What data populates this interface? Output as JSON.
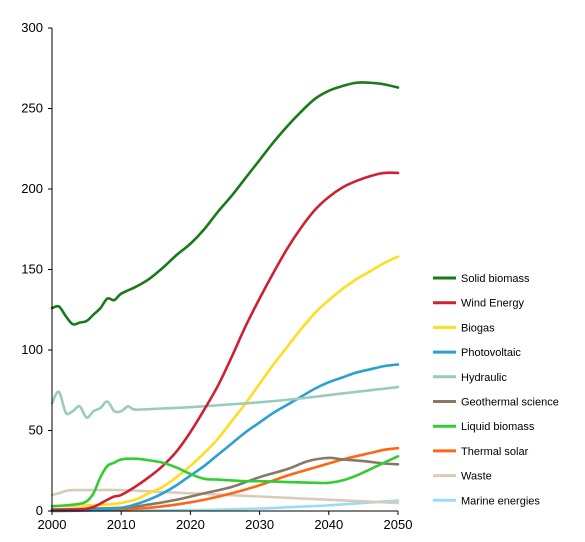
{
  "chart_data": {
    "type": "line",
    "title": "",
    "xlabel": "",
    "ylabel": "",
    "xlim": [
      2000,
      2050
    ],
    "ylim": [
      0,
      300
    ],
    "x_ticks": [
      "2000",
      "2010",
      "2020",
      "2030",
      "2040",
      "2050"
    ],
    "y_ticks": [
      "0",
      "50",
      "100",
      "150",
      "200",
      "250",
      "300"
    ],
    "grid": false,
    "legend_position": "right",
    "series": [
      {
        "name": "Solid biomass",
        "color": "#1a7a1a",
        "points": [
          [
            2000,
            126
          ],
          [
            2001,
            127
          ],
          [
            2002,
            121
          ],
          [
            2003,
            116
          ],
          [
            2004,
            117
          ],
          [
            2005,
            118
          ],
          [
            2006,
            122
          ],
          [
            2007,
            126
          ],
          [
            2008,
            132
          ],
          [
            2009,
            131
          ],
          [
            2010,
            135
          ],
          [
            2012,
            139
          ],
          [
            2014,
            144
          ],
          [
            2016,
            151
          ],
          [
            2018,
            159
          ],
          [
            2020,
            166
          ],
          [
            2022,
            175
          ],
          [
            2024,
            186
          ],
          [
            2026,
            196
          ],
          [
            2028,
            207
          ],
          [
            2030,
            218
          ],
          [
            2032,
            229
          ],
          [
            2034,
            239
          ],
          [
            2036,
            248
          ],
          [
            2038,
            256
          ],
          [
            2040,
            261
          ],
          [
            2042,
            264
          ],
          [
            2044,
            266
          ],
          [
            2046,
            266
          ],
          [
            2048,
            265
          ],
          [
            2050,
            263
          ]
        ]
      },
      {
        "name": "Wind Energy",
        "color": "#cc2233",
        "points": [
          [
            2000,
            0.5
          ],
          [
            2004,
            1
          ],
          [
            2006,
            2.5
          ],
          [
            2008,
            7
          ],
          [
            2009,
            9
          ],
          [
            2010,
            10
          ],
          [
            2012,
            15
          ],
          [
            2014,
            21
          ],
          [
            2016,
            28
          ],
          [
            2018,
            37
          ],
          [
            2020,
            49
          ],
          [
            2022,
            63
          ],
          [
            2024,
            78
          ],
          [
            2026,
            96
          ],
          [
            2028,
            115
          ],
          [
            2030,
            132
          ],
          [
            2032,
            148
          ],
          [
            2034,
            163
          ],
          [
            2036,
            176
          ],
          [
            2038,
            187
          ],
          [
            2040,
            195
          ],
          [
            2042,
            201
          ],
          [
            2044,
            205
          ],
          [
            2046,
            208
          ],
          [
            2048,
            210
          ],
          [
            2050,
            210
          ]
        ]
      },
      {
        "name": "Biogas",
        "color": "#ffdd22",
        "points": [
          [
            2000,
            3
          ],
          [
            2005,
            3.5
          ],
          [
            2008,
            4
          ],
          [
            2010,
            5
          ],
          [
            2012,
            7
          ],
          [
            2014,
            11
          ],
          [
            2016,
            15
          ],
          [
            2018,
            21
          ],
          [
            2020,
            28
          ],
          [
            2022,
            36
          ],
          [
            2024,
            45
          ],
          [
            2026,
            56
          ],
          [
            2028,
            67
          ],
          [
            2030,
            79
          ],
          [
            2032,
            91
          ],
          [
            2034,
            102
          ],
          [
            2036,
            113
          ],
          [
            2038,
            123
          ],
          [
            2040,
            131
          ],
          [
            2042,
            138
          ],
          [
            2044,
            144
          ],
          [
            2046,
            149
          ],
          [
            2048,
            154
          ],
          [
            2050,
            158
          ]
        ]
      },
      {
        "name": "Photovoltaic",
        "color": "#2aa0d0",
        "points": [
          [
            2000,
            0
          ],
          [
            2006,
            0.5
          ],
          [
            2010,
            2
          ],
          [
            2012,
            4
          ],
          [
            2014,
            7
          ],
          [
            2016,
            11
          ],
          [
            2018,
            16
          ],
          [
            2020,
            22
          ],
          [
            2022,
            28
          ],
          [
            2024,
            35
          ],
          [
            2026,
            42
          ],
          [
            2028,
            49
          ],
          [
            2030,
            55
          ],
          [
            2032,
            61
          ],
          [
            2034,
            66
          ],
          [
            2036,
            71
          ],
          [
            2038,
            76
          ],
          [
            2040,
            80
          ],
          [
            2042,
            83
          ],
          [
            2044,
            86
          ],
          [
            2046,
            88
          ],
          [
            2048,
            90
          ],
          [
            2050,
            91
          ]
        ]
      },
      {
        "name": "Hydraulic",
        "color": "#99ccbb",
        "points": [
          [
            2000,
            67
          ],
          [
            2001,
            74
          ],
          [
            2002,
            61
          ],
          [
            2003,
            62
          ],
          [
            2004,
            65
          ],
          [
            2005,
            58
          ],
          [
            2006,
            62
          ],
          [
            2007,
            64
          ],
          [
            2008,
            68
          ],
          [
            2009,
            62
          ],
          [
            2010,
            62
          ],
          [
            2011,
            65
          ],
          [
            2012,
            63
          ],
          [
            2015,
            63.5
          ],
          [
            2020,
            64.5
          ],
          [
            2025,
            66
          ],
          [
            2030,
            67.5
          ],
          [
            2035,
            69.5
          ],
          [
            2040,
            72
          ],
          [
            2045,
            74.5
          ],
          [
            2050,
            77
          ]
        ]
      },
      {
        "name": "Geothermal science",
        "color": "#8a7766",
        "points": [
          [
            2000,
            1
          ],
          [
            2010,
            2
          ],
          [
            2014,
            4
          ],
          [
            2018,
            7
          ],
          [
            2022,
            11
          ],
          [
            2026,
            15
          ],
          [
            2030,
            21
          ],
          [
            2034,
            26
          ],
          [
            2037,
            31
          ],
          [
            2040,
            33
          ],
          [
            2042,
            32
          ],
          [
            2045,
            31
          ],
          [
            2048,
            29.5
          ],
          [
            2050,
            29
          ]
        ]
      },
      {
        "name": "Liquid biomass",
        "color": "#33cc33",
        "points": [
          [
            2000,
            3
          ],
          [
            2002,
            3.5
          ],
          [
            2004,
            4.5
          ],
          [
            2005,
            6
          ],
          [
            2006,
            11
          ],
          [
            2007,
            21
          ],
          [
            2008,
            28
          ],
          [
            2009,
            30
          ],
          [
            2010,
            32
          ],
          [
            2012,
            32.5
          ],
          [
            2014,
            31.5
          ],
          [
            2016,
            30
          ],
          [
            2018,
            27
          ],
          [
            2020,
            23
          ],
          [
            2022,
            20
          ],
          [
            2024,
            19.5
          ],
          [
            2026,
            19
          ],
          [
            2028,
            18.5
          ],
          [
            2030,
            18.5
          ],
          [
            2034,
            18
          ],
          [
            2038,
            17.5
          ],
          [
            2040,
            17.5
          ],
          [
            2042,
            19
          ],
          [
            2044,
            22
          ],
          [
            2046,
            26
          ],
          [
            2048,
            30
          ],
          [
            2050,
            34
          ]
        ]
      },
      {
        "name": "Thermal solar",
        "color": "#ff6611",
        "points": [
          [
            2000,
            0.5
          ],
          [
            2010,
            1
          ],
          [
            2014,
            2
          ],
          [
            2018,
            4
          ],
          [
            2022,
            7
          ],
          [
            2026,
            11
          ],
          [
            2030,
            16
          ],
          [
            2034,
            22
          ],
          [
            2038,
            27
          ],
          [
            2042,
            32
          ],
          [
            2046,
            36
          ],
          [
            2048,
            38
          ],
          [
            2050,
            39
          ]
        ]
      },
      {
        "name": "Waste",
        "color": "#d8ccb8",
        "points": [
          [
            2000,
            10
          ],
          [
            2001,
            11
          ],
          [
            2002,
            12.5
          ],
          [
            2003,
            13
          ],
          [
            2005,
            13
          ],
          [
            2010,
            13
          ],
          [
            2015,
            12
          ],
          [
            2020,
            11
          ],
          [
            2025,
            10
          ],
          [
            2030,
            9
          ],
          [
            2035,
            8
          ],
          [
            2040,
            7
          ],
          [
            2045,
            6
          ],
          [
            2050,
            5
          ]
        ]
      },
      {
        "name": "Marine energies",
        "color": "#99ddf2",
        "points": [
          [
            2000,
            0
          ],
          [
            2020,
            0.5
          ],
          [
            2025,
            1
          ],
          [
            2030,
            1.5
          ],
          [
            2035,
            2.5
          ],
          [
            2040,
            3.5
          ],
          [
            2045,
            5
          ],
          [
            2050,
            6.5
          ]
        ]
      }
    ]
  }
}
